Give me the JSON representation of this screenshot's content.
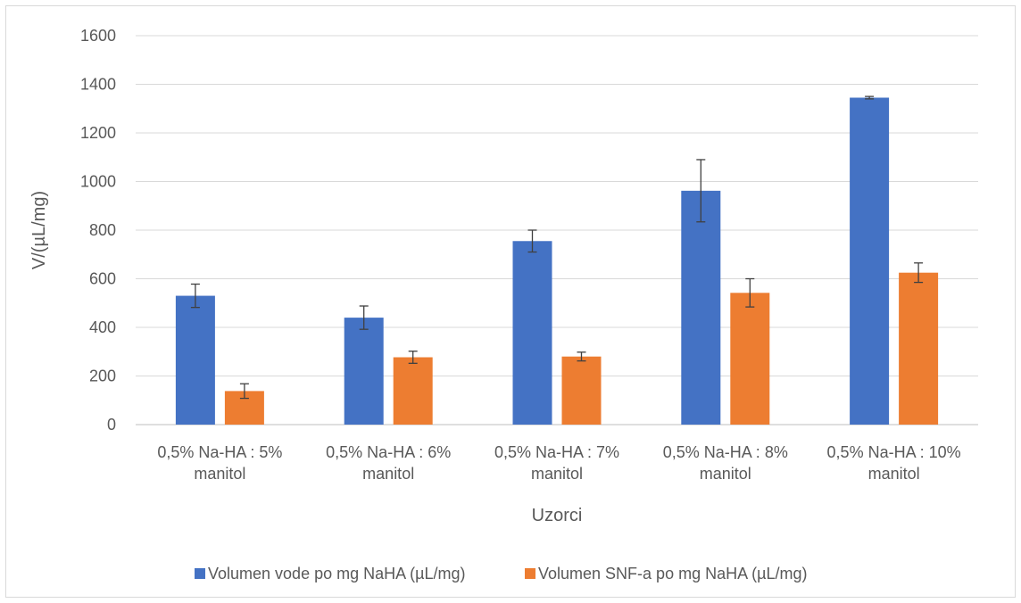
{
  "chart_data": {
    "type": "bar",
    "title": "",
    "xlabel": "Uzorci",
    "ylabel": "V/(µL/mg)",
    "ylim": [
      0,
      1600
    ],
    "yticks": [
      0,
      200,
      400,
      600,
      800,
      1000,
      1200,
      1400,
      1600
    ],
    "grid": true,
    "legend_position": "bottom",
    "categories": [
      [
        "0,5% Na-HA : 5%",
        "manitol"
      ],
      [
        "0,5% Na-HA : 6%",
        "manitol"
      ],
      [
        "0,5% Na-HA : 7%",
        "manitol"
      ],
      [
        "0,5% Na-HA : 8%",
        "manitol"
      ],
      [
        "0,5% Na-HA : 10%",
        "manitol"
      ]
    ],
    "series": [
      {
        "name": "Volumen vode po mg NaHA (µL/mg)",
        "color": "#4472c4",
        "values": [
          530,
          440,
          755,
          962,
          1345
        ],
        "errors": [
          48,
          48,
          45,
          128,
          5
        ]
      },
      {
        "name": "Volumen SNF-a po mg NaHA (µL/mg)",
        "color": "#ed7d31",
        "values": [
          138,
          277,
          280,
          542,
          625
        ],
        "errors": [
          30,
          25,
          18,
          58,
          40
        ]
      }
    ]
  }
}
